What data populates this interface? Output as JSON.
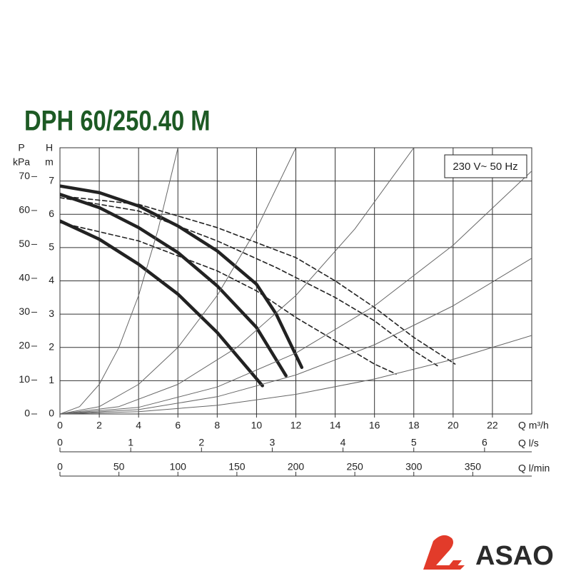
{
  "chart_data": {
    "type": "line",
    "title": "DPH 60/250.40 M",
    "annotation": "230 V~ 50 Hz",
    "y_label": "H",
    "y_unit": "m",
    "y2_label": "P",
    "y2_unit": "kPa",
    "x_label": "Q m³/h",
    "xlim": [
      0,
      24
    ],
    "xticks": [
      0,
      2,
      4,
      6,
      8,
      10,
      12,
      14,
      16,
      18,
      20,
      22
    ],
    "ylim": [
      0,
      8
    ],
    "yticks": [
      0,
      1,
      2,
      3,
      4,
      5,
      6,
      7
    ],
    "y2lim": [
      0,
      78.5
    ],
    "y2ticks": [
      0,
      10,
      20,
      30,
      40,
      50,
      60,
      70
    ],
    "x_axes": [
      {
        "label": "Q l/s",
        "xlim": [
          0,
          6.667
        ],
        "xticks": [
          0,
          1,
          2,
          3,
          4,
          5,
          6
        ]
      },
      {
        "label": "Q l/min",
        "xlim": [
          0,
          400
        ],
        "xticks": [
          0,
          50,
          100,
          150,
          200,
          250,
          300,
          350
        ]
      }
    ],
    "grid": true,
    "series": [
      {
        "color": "#222222",
        "style": "bold",
        "x": [
          0,
          2,
          4,
          6,
          8,
          10,
          11,
          12.3
        ],
        "values": [
          6.85,
          6.65,
          6.25,
          5.65,
          4.9,
          3.9,
          3.0,
          1.4
        ]
      },
      {
        "color": "#222222",
        "style": "bold",
        "x": [
          0,
          2,
          4,
          6,
          8,
          10,
          11.5
        ],
        "values": [
          6.6,
          6.2,
          5.6,
          4.85,
          3.85,
          2.6,
          1.15
        ]
      },
      {
        "color": "#222222",
        "style": "bold",
        "x": [
          0,
          2,
          4,
          6,
          8,
          10.3
        ],
        "values": [
          5.8,
          5.25,
          4.5,
          3.6,
          2.45,
          0.85
        ]
      },
      {
        "color": "#222222",
        "style": "dashed",
        "x": [
          0,
          4,
          8,
          12,
          14,
          16,
          18,
          20.1
        ],
        "values": [
          6.55,
          6.3,
          5.6,
          4.7,
          4.0,
          3.2,
          2.3,
          1.5
        ]
      },
      {
        "color": "#222222",
        "style": "dashed",
        "x": [
          0,
          4,
          8,
          11,
          14,
          16,
          18,
          19.2
        ],
        "values": [
          6.5,
          6.1,
          5.2,
          4.4,
          3.5,
          2.8,
          1.9,
          1.45
        ]
      },
      {
        "color": "#222222",
        "style": "dashed",
        "x": [
          0,
          4,
          8,
          10,
          12,
          14,
          16,
          17.1
        ],
        "values": [
          5.75,
          5.2,
          4.3,
          3.7,
          2.9,
          2.2,
          1.5,
          1.2
        ]
      },
      {
        "color": "#666666",
        "style": "thin",
        "x": [
          0,
          1,
          2,
          3,
          4,
          5,
          6
        ],
        "values": [
          0,
          0.22,
          0.89,
          2.0,
          3.56,
          5.56,
          8.0
        ]
      },
      {
        "color": "#666666",
        "style": "thin",
        "x": [
          0,
          2,
          4,
          6,
          8,
          10,
          12
        ],
        "values": [
          0,
          0.22,
          0.89,
          2.0,
          3.56,
          5.56,
          8.0
        ]
      },
      {
        "color": "#666666",
        "style": "thin",
        "x": [
          0,
          3,
          6,
          9,
          12,
          15,
          18
        ],
        "values": [
          0,
          0.22,
          0.89,
          2.0,
          3.56,
          5.56,
          8.0
        ]
      },
      {
        "color": "#666666",
        "style": "thin",
        "x": [
          0,
          4,
          8,
          12,
          16,
          20,
          24
        ],
        "values": [
          0,
          0.2,
          0.81,
          1.83,
          3.25,
          5.07,
          7.3
        ]
      },
      {
        "color": "#666666",
        "style": "thin",
        "x": [
          0,
          4,
          8,
          12,
          16,
          20,
          24
        ],
        "values": [
          0,
          0.13,
          0.52,
          1.17,
          2.08,
          3.25,
          4.68
        ]
      },
      {
        "color": "#666666",
        "style": "thin",
        "x": [
          0,
          4,
          8,
          12,
          16,
          20,
          24
        ],
        "values": [
          0,
          0.07,
          0.26,
          0.59,
          1.05,
          1.64,
          2.36
        ]
      }
    ]
  },
  "brand": "ASAO"
}
